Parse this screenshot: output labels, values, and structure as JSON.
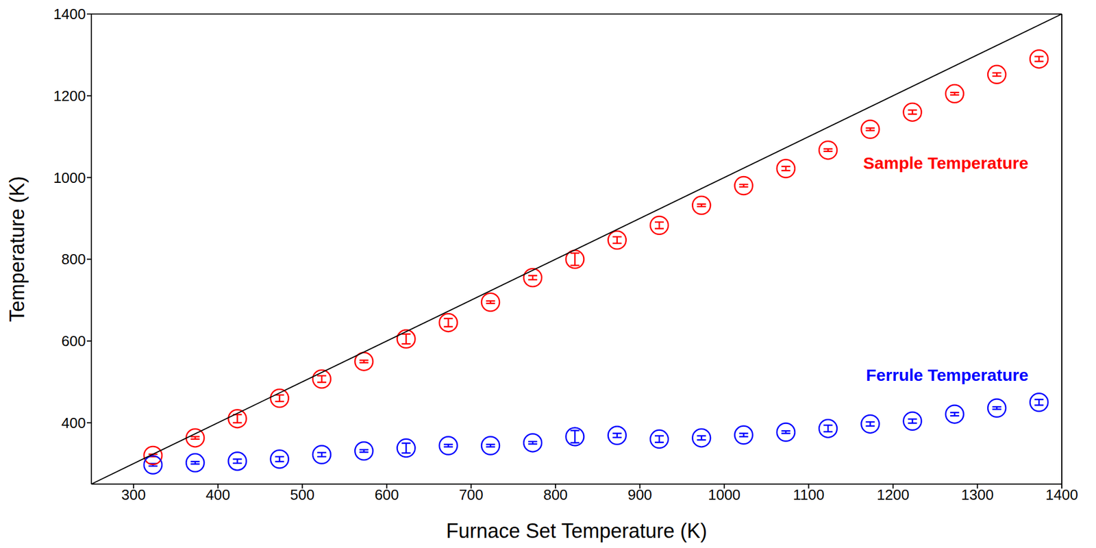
{
  "chart_data": {
    "type": "scatter",
    "x_label": "Furnace Set Temperature (K)",
    "y_label": "Temperature (K)",
    "xlim": [
      250,
      1400
    ],
    "ylim": [
      250,
      1400
    ],
    "xticks": [
      300,
      400,
      500,
      600,
      700,
      800,
      900,
      1000,
      1100,
      1200,
      1300,
      1400
    ],
    "yticks": [
      400,
      600,
      800,
      1000,
      1200,
      1400
    ],
    "grid": false,
    "series": [
      {
        "name": "Sample Temperature",
        "color": "#ff0000",
        "marker": "circle",
        "x": [
          323,
          373,
          423,
          473,
          523,
          573,
          623,
          673,
          723,
          773,
          823,
          873,
          923,
          973,
          1023,
          1073,
          1123,
          1173,
          1223,
          1273,
          1323,
          1373
        ],
        "values": [
          320,
          363,
          410,
          460,
          507,
          550,
          605,
          645,
          695,
          755,
          800,
          847,
          883,
          932,
          980,
          1022,
          1067,
          1118,
          1160,
          1205,
          1252,
          1290
        ],
        "errors": [
          3,
          3,
          10,
          8,
          8,
          3,
          12,
          10,
          3,
          5,
          15,
          8,
          8,
          3,
          3,
          5,
          3,
          3,
          5,
          3,
          4,
          6
        ]
      },
      {
        "name": "Ferrule Temperature",
        "color": "#0000ff",
        "marker": "circle",
        "x": [
          323,
          373,
          423,
          473,
          523,
          573,
          623,
          673,
          723,
          773,
          823,
          873,
          923,
          973,
          1023,
          1073,
          1123,
          1173,
          1223,
          1273,
          1323,
          1373
        ],
        "values": [
          297,
          302,
          306,
          311,
          322,
          331,
          338,
          344,
          344,
          351,
          366,
          369,
          360,
          363,
          370,
          377,
          386,
          397,
          404,
          421,
          436,
          450
        ],
        "errors": [
          3,
          3,
          5,
          6,
          5,
          3,
          12,
          3,
          3,
          3,
          15,
          5,
          8,
          5,
          4,
          3,
          8,
          5,
          5,
          4,
          3,
          7
        ]
      },
      {
        "type": "line",
        "color": "#000000",
        "marker": "none",
        "line_style": "solid",
        "x": [
          250,
          1400
        ],
        "values": [
          250,
          1400
        ]
      }
    ]
  }
}
